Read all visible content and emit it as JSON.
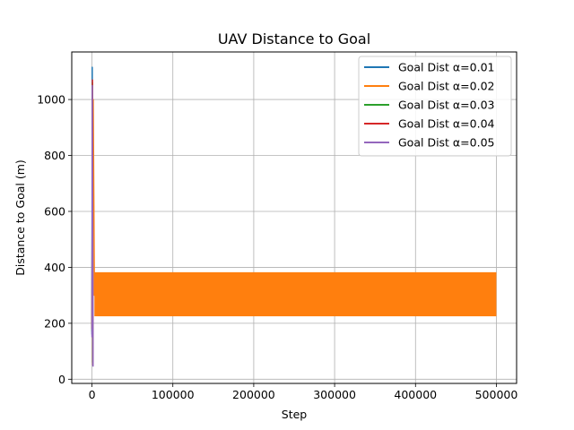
{
  "chart_data": {
    "type": "line",
    "title": "UAV Distance to Goal",
    "xlabel": "Step",
    "ylabel": "Distance to Goal (m)",
    "xlim": [
      -25000,
      525000
    ],
    "ylim": [
      -15,
      1170
    ],
    "xticks": [
      0,
      100000,
      200000,
      300000,
      400000,
      500000
    ],
    "xtick_labels": [
      "0",
      "100000",
      "200000",
      "300000",
      "400000",
      "500000"
    ],
    "yticks": [
      0,
      200,
      400,
      600,
      800,
      1000
    ],
    "ytick_labels": [
      "0",
      "200",
      "400",
      "600",
      "800",
      "1000"
    ],
    "grid": true,
    "legend_position": "top-right",
    "series": [
      {
        "name": "Goal Dist α=0.01",
        "color": "#1f77b4",
        "x": [
          0,
          300,
          600,
          900,
          1200
        ],
        "y": [
          160,
          1115,
          700,
          300,
          50
        ]
      },
      {
        "name": "Goal Dist α=0.02",
        "color": "#ff7f0e",
        "style": "oscillating band",
        "x": [
          0,
          1500,
          3000,
          4000,
          500000
        ],
        "y": [
          200,
          1000,
          300,
          380,
          380
        ],
        "band": {
          "x_start": 3000,
          "x_end": 500000,
          "y_low": 225,
          "y_high": 380
        }
      },
      {
        "name": "Goal Dist α=0.03",
        "color": "#2ca02c",
        "x": [
          0,
          500,
          1000
        ],
        "y": [
          170,
          1060,
          60
        ]
      },
      {
        "name": "Goal Dist α=0.04",
        "color": "#d62728",
        "x": [
          0,
          600,
          1100
        ],
        "y": [
          180,
          1070,
          50
        ]
      },
      {
        "name": "Goal Dist α=0.05",
        "color": "#9467bd",
        "x": [
          0,
          400,
          900,
          1300
        ],
        "y": [
          150,
          1050,
          500,
          45
        ]
      }
    ]
  }
}
